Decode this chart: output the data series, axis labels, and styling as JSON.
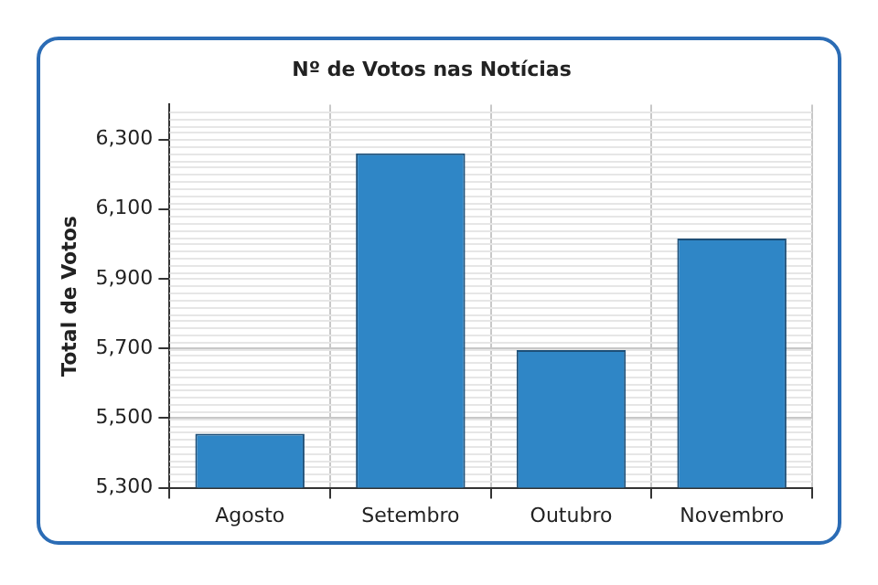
{
  "chart_data": {
    "type": "bar",
    "title": "Nº de Votos nas Notícias",
    "ylabel": "Total de Votos",
    "categories": [
      "Agosto",
      "Setembro",
      "Outubro",
      "Novembro"
    ],
    "values": [
      5455,
      6260,
      5695,
      6015
    ],
    "color": "#2f86c6",
    "ylim": [
      5300,
      6400
    ],
    "yticks": [
      {
        "value": 5300,
        "label": "5,300"
      },
      {
        "value": 5500,
        "label": "5,500"
      },
      {
        "value": 5700,
        "label": "5,700"
      },
      {
        "value": 5900,
        "label": "5,900"
      },
      {
        "value": 6100,
        "label": "6,100"
      },
      {
        "value": 6300,
        "label": "6,300"
      }
    ],
    "grid": true
  }
}
